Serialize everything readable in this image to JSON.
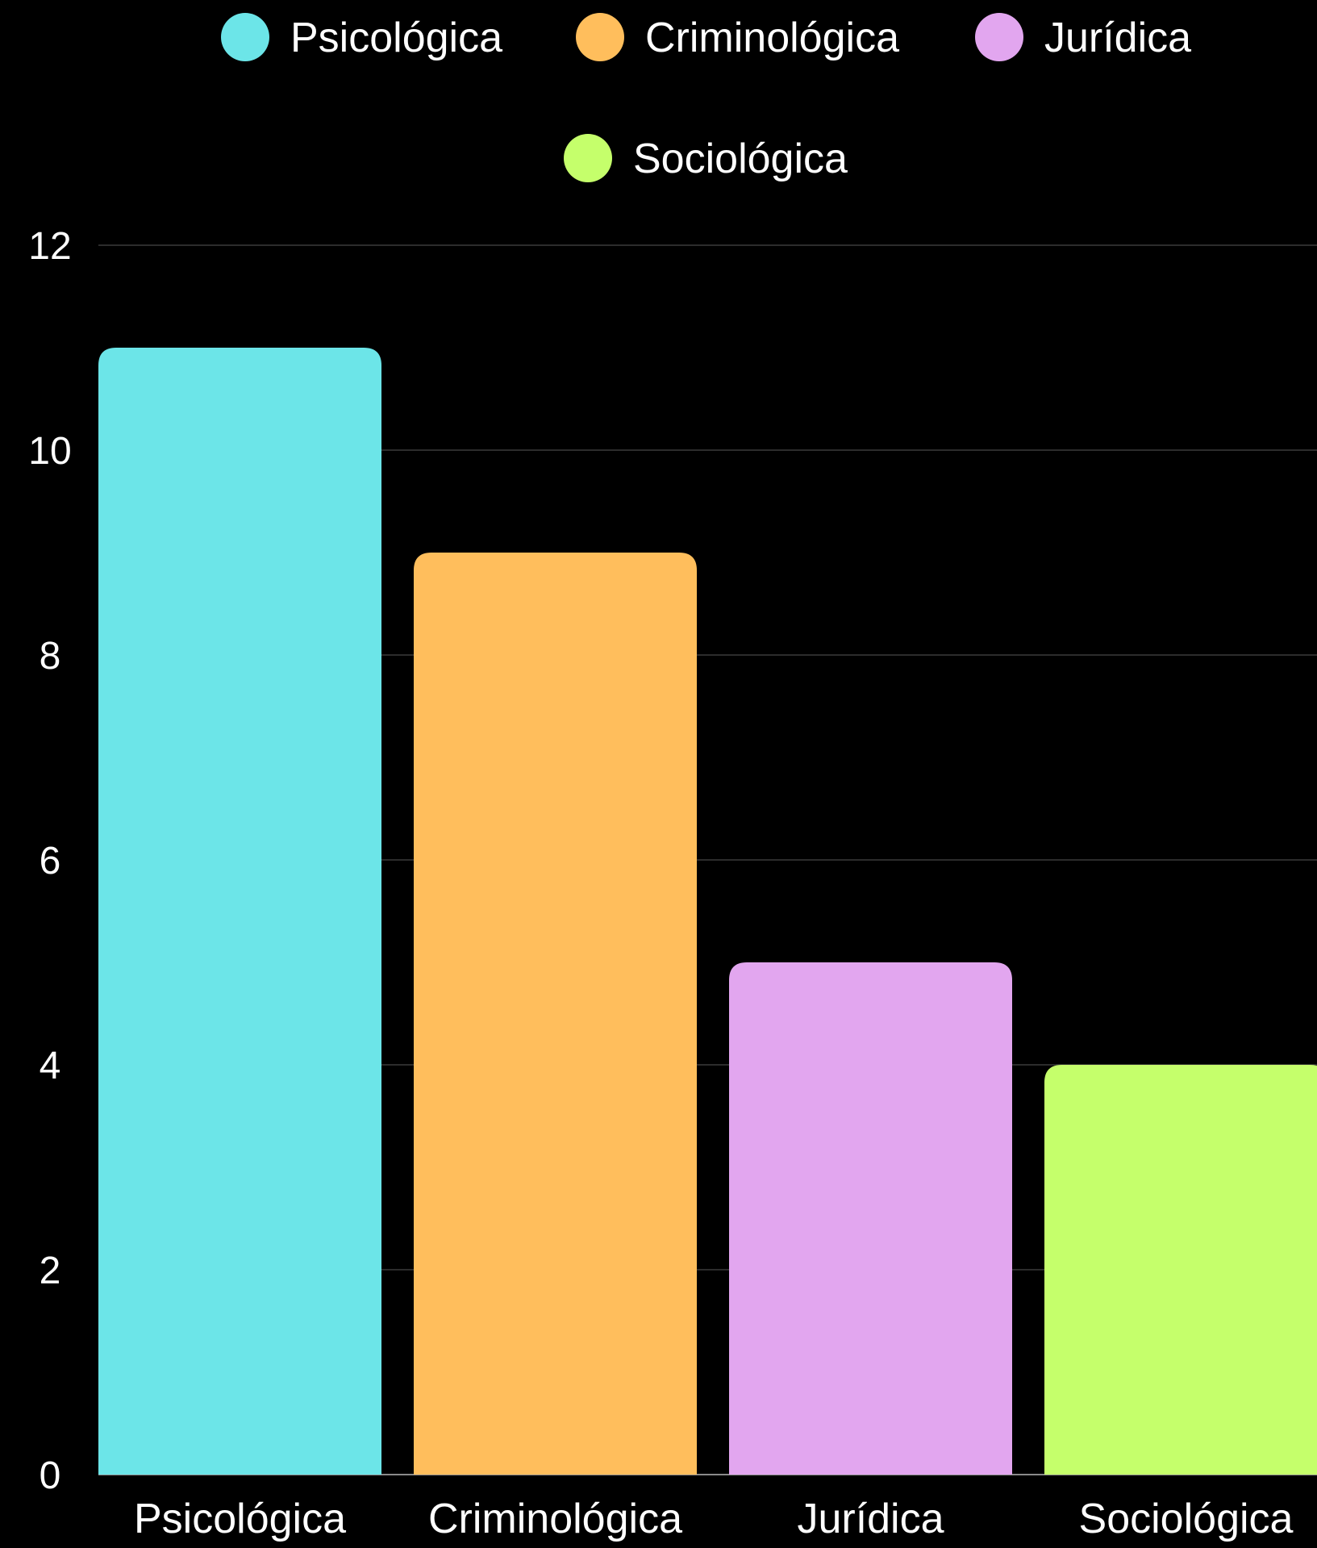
{
  "chart_data": {
    "type": "bar",
    "categories": [
      "Psicológica",
      "Criminológica",
      "Jurídica",
      "Sociológica"
    ],
    "values": [
      11,
      9,
      5,
      4
    ],
    "colors": [
      "#6ce5e8",
      "#ffbe5c",
      "#e2a6ef",
      "#c5ff6b"
    ],
    "legend": {
      "placement": "top-center",
      "entries": [
        "Psicológica",
        "Criminológica",
        "Jurídica",
        "Sociológica"
      ]
    },
    "ylim": [
      0,
      12
    ],
    "yticks": [
      0,
      2,
      4,
      6,
      8,
      10,
      12
    ],
    "ytick_labels": [
      "0",
      "2",
      "4",
      "6",
      "8",
      "10",
      "12"
    ],
    "grid": true,
    "title": "",
    "xlabel": "",
    "ylabel": ""
  },
  "theme": {
    "background": "#000000",
    "text": "#ffffff",
    "grid": "#3a3a3a"
  }
}
